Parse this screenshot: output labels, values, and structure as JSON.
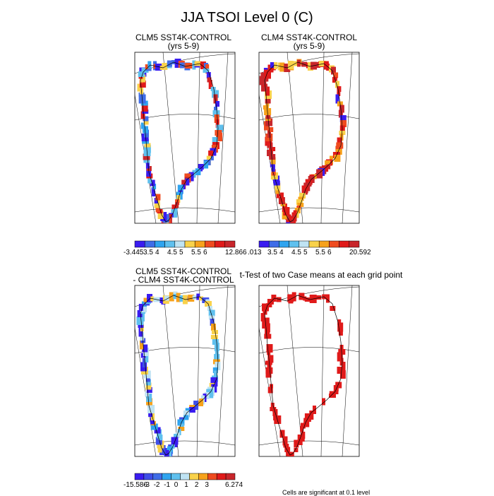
{
  "figure": {
    "title": "JJA TSOI Level 0 (C)",
    "footer_note": "Cells are significant at 0.1 level"
  },
  "panels": [
    {
      "id": "clm5",
      "title_line1": "CLM5 SST4K-CONTROL",
      "title_line2": "(yrs 5-9)",
      "colorbar": {
        "colors": [
          "#3a1cf0",
          "#3f6de8",
          "#2fa4ef",
          "#5fc0ee",
          "#bfe3f3",
          "#f9d24a",
          "#f7a21b",
          "#ef4b1f",
          "#e01a1a",
          "#c8262b"
        ],
        "labels": [
          "-3.445",
          "3.5",
          "4",
          "4.5",
          "5",
          "5.5",
          "6",
          "12.866"
        ]
      }
    },
    {
      "id": "clm4",
      "title_line1": "CLM4 SST4K-CONTROL",
      "title_line2": "(yrs 5-9)",
      "colorbar": {
        "colors": [
          "#3a1cf0",
          "#3f6de8",
          "#2fa4ef",
          "#5fc0ee",
          "#bfe3f3",
          "#f9d24a",
          "#f7a21b",
          "#ef4b1f",
          "#e01a1a",
          "#c8262b"
        ],
        "labels": [
          ".013",
          "3.5",
          "4",
          "4.5",
          "5",
          "5.5",
          "6",
          "20.592"
        ]
      }
    },
    {
      "id": "diff",
      "title_line1": "CLM5 SST4K-CONTROL",
      "title_line2": "- CLM4 SST4K-CONTROL",
      "colorbar": {
        "colors": [
          "#3a1cf0",
          "#3f4ee8",
          "#3f6de8",
          "#2fa4ef",
          "#5fc0ee",
          "#bfe3f3",
          "#f9d24a",
          "#f7a21b",
          "#ef4b1f",
          "#e01a1a",
          "#c8262b"
        ],
        "labels": [
          "-15.586",
          "-3",
          "-2",
          "-1",
          "0",
          "1",
          "2",
          "3",
          "6.274"
        ]
      }
    },
    {
      "id": "ttest",
      "title_line1": "t-Test of two Case means at each grid point",
      "title_line2": ""
    }
  ],
  "chart_data": {
    "type": "heatmap",
    "title": "JJA TSOI Level 0 (C)",
    "maps": [
      {
        "name": "CLM5 SST4K-CONTROL (yrs 5-9)",
        "color_levels": [
          3.5,
          4,
          4.5,
          5,
          5.5,
          6
        ],
        "min": -3.445,
        "max": 12.866
      },
      {
        "name": "CLM4 SST4K-CONTROL (yrs 5-9)",
        "color_levels": [
          3.5,
          4,
          4.5,
          5,
          5.5,
          6
        ],
        "min": 0.013,
        "max": 20.592
      },
      {
        "name": "CLM5 SST4K-CONTROL - CLM4 SST4K-CONTROL",
        "color_levels": [
          -3,
          -2,
          -1,
          0,
          1,
          2,
          3
        ],
        "min": -15.586,
        "max": 6.274
      },
      {
        "name": "t-Test of two Case means at each grid point",
        "significance_level": 0.1
      }
    ]
  }
}
